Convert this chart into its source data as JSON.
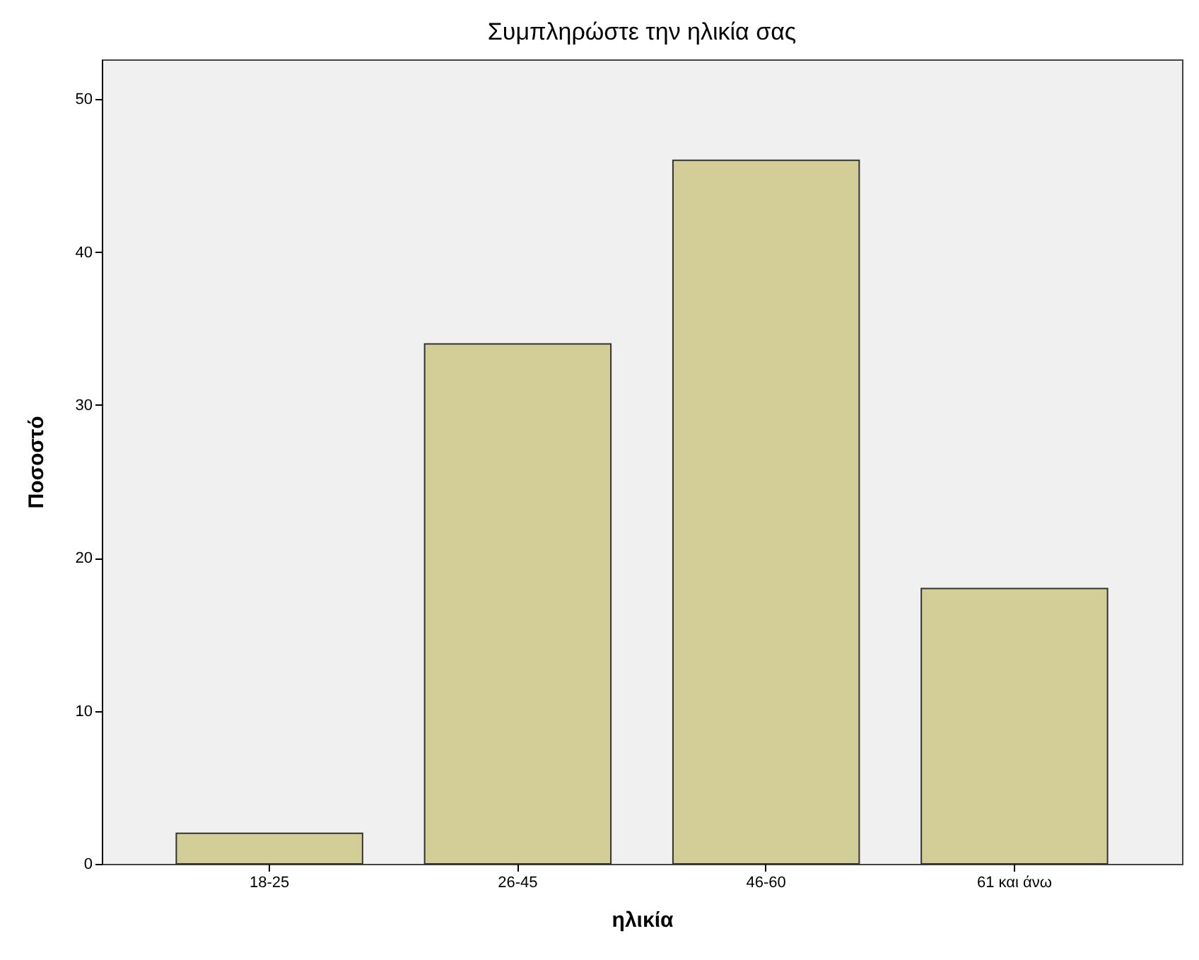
{
  "chart_data": {
    "type": "bar",
    "title": "Συμπληρώστε την ηλικία σας",
    "xlabel": "ηλικία",
    "ylabel": "Ποσοστό",
    "categories": [
      "18-25",
      "26-45",
      "46-60",
      "61 και άνω"
    ],
    "values": [
      2,
      34,
      46,
      18
    ],
    "color": "#d3ce97",
    "ylim": [
      0,
      52.6
    ],
    "yticks": [
      0,
      10,
      20,
      30,
      40,
      50
    ],
    "grid": false
  }
}
